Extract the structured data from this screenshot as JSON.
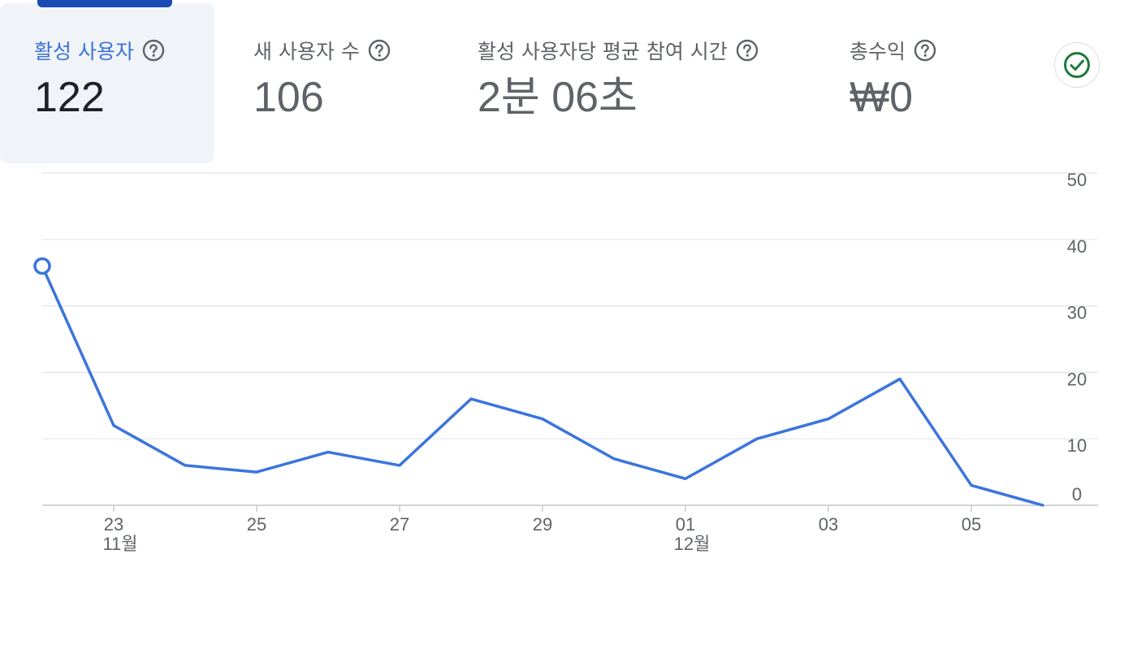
{
  "metrics": [
    {
      "label": "활성 사용자",
      "value": "122",
      "active": true
    },
    {
      "label": "새 사용자 수",
      "value": "106",
      "active": false
    },
    {
      "label": "활성 사용자당 평균 참여 시간",
      "value": "2분 06초",
      "active": false
    },
    {
      "label": "총수익",
      "value": "₩0",
      "active": false
    }
  ],
  "icons": {
    "help": "help-circle-icon",
    "status": "check-circle-icon"
  },
  "colors": {
    "accent": "#3c73d4",
    "line": "#3b74dd",
    "indicator": "#1a4ab5",
    "check": "#1e7a3a"
  },
  "chart_data": {
    "type": "line",
    "x": [
      "11-22",
      "11-23",
      "11-24",
      "11-25",
      "11-26",
      "11-27",
      "11-28",
      "11-29",
      "11-30",
      "12-01",
      "12-02",
      "12-03",
      "12-04",
      "12-05",
      "12-06"
    ],
    "series": [
      {
        "values": [
          36,
          12,
          6,
          5,
          8,
          6,
          16,
          13,
          7,
          4,
          10,
          13,
          19,
          3,
          0
        ]
      }
    ],
    "x_tick_labels": [
      {
        "index": 1,
        "day": "23",
        "month": "11월"
      },
      {
        "index": 3,
        "day": "25",
        "month": ""
      },
      {
        "index": 5,
        "day": "27",
        "month": ""
      },
      {
        "index": 7,
        "day": "29",
        "month": ""
      },
      {
        "index": 9,
        "day": "01",
        "month": "12월"
      },
      {
        "index": 11,
        "day": "03",
        "month": ""
      },
      {
        "index": 13,
        "day": "05",
        "month": ""
      }
    ],
    "yticks": [
      0,
      10,
      20,
      30,
      40,
      50
    ],
    "ylim": [
      0,
      50
    ],
    "y_axis_side": "right",
    "grid": true,
    "highlight_index": 0
  }
}
